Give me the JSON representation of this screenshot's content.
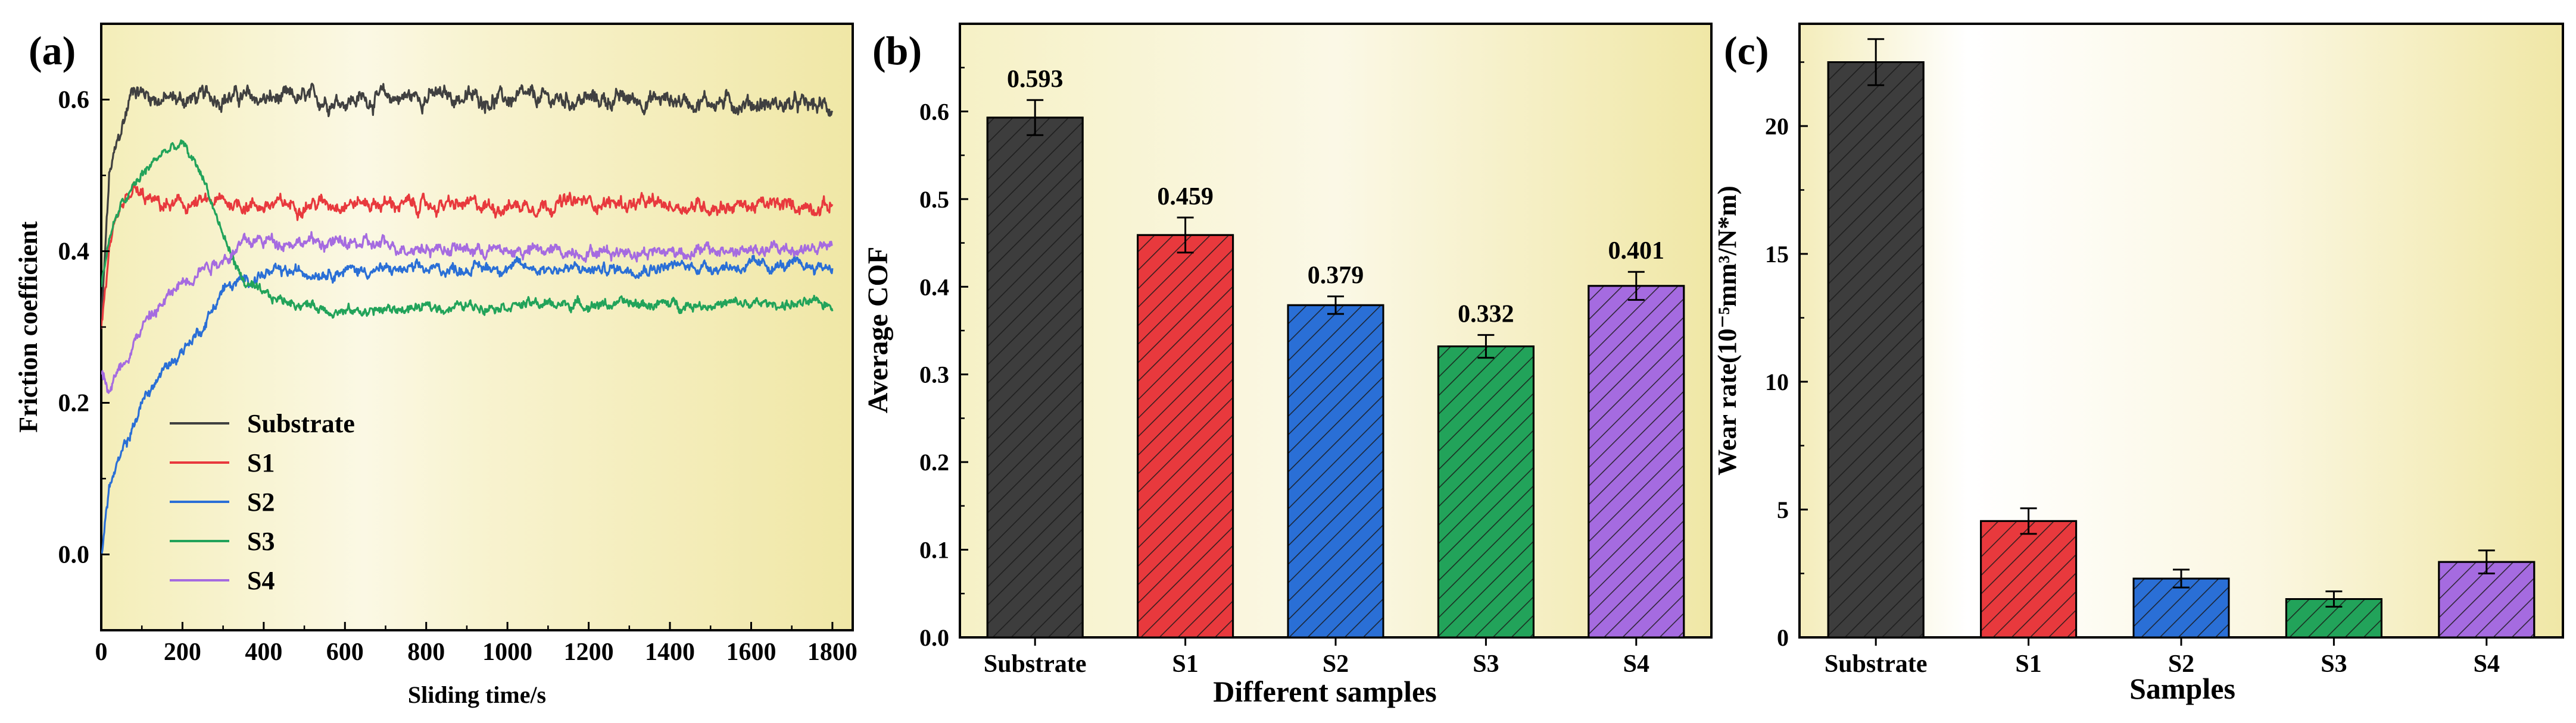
{
  "chart_data": [
    {
      "panel_label": "(a)",
      "type": "line",
      "title": "",
      "xlabel": "Sliding time/s",
      "ylabel": "Friction coefficient",
      "xlim": [
        0,
        1850
      ],
      "ylim": [
        -0.1,
        0.7
      ],
      "xticks": [
        0,
        200,
        400,
        600,
        800,
        1000,
        1200,
        1400,
        1600,
        1800
      ],
      "yticks": [
        0.0,
        0.2,
        0.4,
        0.6
      ],
      "ytick_labels": [
        "0.0",
        "0.2",
        "0.4",
        "0.6"
      ],
      "legend_position": "lower-left",
      "series": [
        {
          "name": "Substrate",
          "color": "#404040",
          "x": [
            0,
            20,
            50,
            80,
            100,
            150,
            200,
            300,
            400,
            600,
            800,
            1000,
            1200,
            1400,
            1600,
            1800
          ],
          "y": [
            0.3,
            0.5,
            0.56,
            0.62,
            0.61,
            0.6,
            0.6,
            0.605,
            0.6,
            0.6,
            0.605,
            0.6,
            0.6,
            0.6,
            0.595,
            0.59
          ]
        },
        {
          "name": "S1",
          "color": "#e8393d",
          "x": [
            0,
            20,
            50,
            80,
            100,
            150,
            200,
            300,
            400,
            600,
            800,
            1000,
            1200,
            1400,
            1600,
            1800
          ],
          "y": [
            0.3,
            0.4,
            0.45,
            0.48,
            0.47,
            0.46,
            0.46,
            0.465,
            0.46,
            0.465,
            0.46,
            0.46,
            0.465,
            0.46,
            0.46,
            0.46
          ]
        },
        {
          "name": "S2",
          "color": "#2a6fd6",
          "x": [
            0,
            20,
            50,
            80,
            100,
            150,
            200,
            250,
            300,
            400,
            600,
            800,
            1000,
            1200,
            1400,
            1600,
            1800
          ],
          "y": [
            0.0,
            0.09,
            0.13,
            0.17,
            0.2,
            0.24,
            0.27,
            0.3,
            0.35,
            0.37,
            0.375,
            0.375,
            0.38,
            0.375,
            0.38,
            0.38,
            0.38
          ]
        },
        {
          "name": "S3",
          "color": "#22a35a",
          "x": [
            0,
            20,
            50,
            100,
            150,
            200,
            250,
            300,
            350,
            400,
            500,
            600,
            800,
            1000,
            1200,
            1400,
            1600,
            1800
          ],
          "y": [
            0.35,
            0.42,
            0.46,
            0.5,
            0.53,
            0.54,
            0.5,
            0.42,
            0.36,
            0.34,
            0.33,
            0.32,
            0.325,
            0.33,
            0.33,
            0.33,
            0.33,
            0.33
          ]
        },
        {
          "name": "S4",
          "color": "#a56be0",
          "x": [
            0,
            20,
            50,
            100,
            150,
            200,
            250,
            300,
            350,
            400,
            600,
            800,
            1000,
            1200,
            1400,
            1600,
            1800
          ],
          "y": [
            0.24,
            0.22,
            0.25,
            0.3,
            0.33,
            0.36,
            0.38,
            0.39,
            0.41,
            0.415,
            0.41,
            0.405,
            0.4,
            0.4,
            0.4,
            0.4,
            0.405
          ]
        }
      ]
    },
    {
      "panel_label": "(b)",
      "type": "bar",
      "title": "",
      "xlabel": "Different samples",
      "ylabel": "Average COF",
      "categories": [
        "Substrate",
        "S1",
        "S2",
        "S3",
        "S4"
      ],
      "values": [
        0.593,
        0.459,
        0.379,
        0.332,
        0.401
      ],
      "value_labels": [
        "0.593",
        "0.459",
        "0.379",
        "0.332",
        "0.401"
      ],
      "errors": [
        0.02,
        0.02,
        0.01,
        0.013,
        0.016
      ],
      "colors": [
        "#3d3d3d",
        "#e8393d",
        "#2a6fd6",
        "#22a35a",
        "#a56be0"
      ],
      "ylim": [
        0,
        0.7
      ],
      "yticks": [
        0.0,
        0.1,
        0.2,
        0.3,
        0.4,
        0.5,
        0.6
      ],
      "ytick_labels": [
        "0.0",
        "0.1",
        "0.2",
        "0.3",
        "0.4",
        "0.5",
        "0.6"
      ]
    },
    {
      "panel_label": "(c)",
      "type": "bar",
      "title": "",
      "xlabel": "Samples",
      "ylabel": "Wear rate(10⁻⁵mm³/N*m)",
      "categories": [
        "Substrate",
        "S1",
        "S2",
        "S3",
        "S4"
      ],
      "values": [
        22.5,
        4.55,
        2.3,
        1.5,
        2.95
      ],
      "errors": [
        0.9,
        0.5,
        0.35,
        0.3,
        0.45
      ],
      "colors": [
        "#3d3d3d",
        "#e8393d",
        "#2a6fd6",
        "#22a35a",
        "#a56be0"
      ],
      "ylim": [
        0,
        24
      ],
      "yticks": [
        0,
        5,
        10,
        15,
        20
      ],
      "ytick_labels": [
        "0",
        "5",
        "10",
        "15",
        "20"
      ]
    }
  ]
}
